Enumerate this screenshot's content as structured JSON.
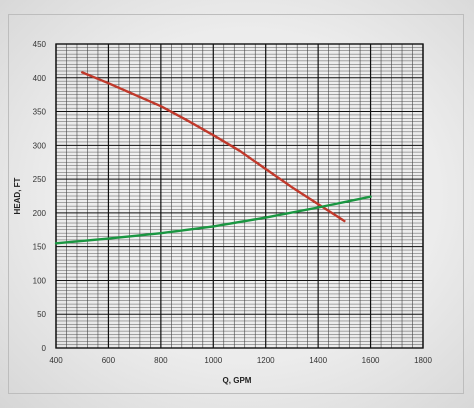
{
  "chart_data": {
    "type": "line",
    "xlabel": "Q, GPM",
    "ylabel": "HEAD, FT",
    "xlim": [
      400,
      1800
    ],
    "ylim": [
      0,
      450
    ],
    "x_ticks": [
      400,
      600,
      800,
      1000,
      1200,
      1400,
      1600,
      1800
    ],
    "y_ticks": [
      0,
      50,
      100,
      150,
      200,
      250,
      300,
      350,
      400,
      450
    ],
    "grid": true,
    "series": [
      {
        "color": "#c0392b",
        "x": [
          500,
          600,
          700,
          800,
          900,
          1000,
          1100,
          1200,
          1300,
          1400,
          1500
        ],
        "y": [
          408,
          392,
          375,
          358,
          337,
          315,
          292,
          265,
          238,
          213,
          188
        ]
      },
      {
        "color": "#1a9641",
        "x": [
          400,
          600,
          800,
          1000,
          1200,
          1400,
          1600
        ],
        "y": [
          155,
          162,
          170,
          180,
          193,
          208,
          224
        ]
      }
    ]
  }
}
